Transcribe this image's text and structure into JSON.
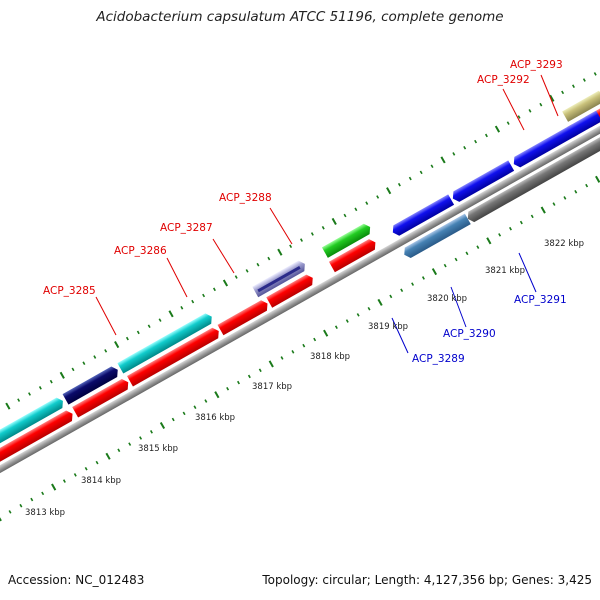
{
  "title": "Acidobacterium capsulatum ATCC 51196, complete genome",
  "footer": {
    "accession": "Accession: NC_012483",
    "summary": "Topology: circular; Length: 4,127,356 bp; Genes: 3,425"
  },
  "colors": {
    "backbone": "#9a9a9a",
    "tick": "#1a7a1a",
    "forward_label": "#e00000",
    "reverse_label": "#0000cc"
  },
  "scale_labels": [
    "3813 kbp",
    "3814 kbp",
    "3815 kbp",
    "3816 kbp",
    "3817 kbp",
    "3818 kbp",
    "3819 kbp",
    "3820 kbp",
    "3821 kbp",
    "3822 kbp"
  ],
  "gene_labels": {
    "forward": [
      "ACP_3285",
      "ACP_3286",
      "ACP_3287",
      "ACP_3288",
      "ACP_3292",
      "ACP_3293"
    ],
    "reverse": [
      "ACP_3289",
      "ACP_3290",
      "ACP_3291"
    ]
  },
  "legend_note": ""
}
